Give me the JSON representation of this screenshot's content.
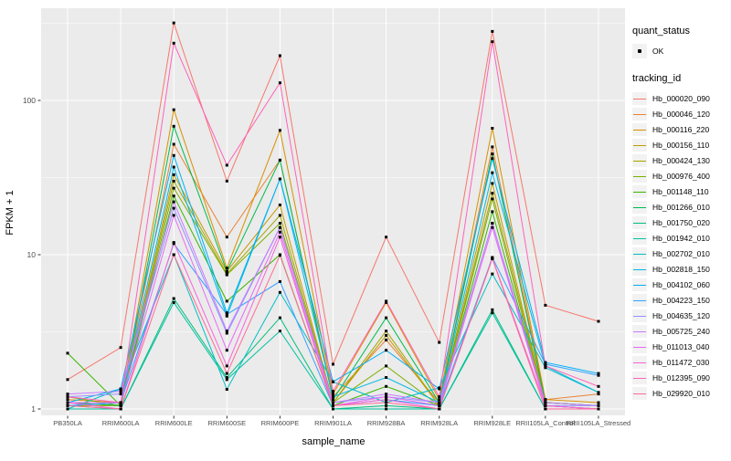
{
  "legend": {
    "quant_title": "quant_status",
    "quant_items": [
      {
        "label": "OK"
      }
    ],
    "tracking_title": "tracking_id"
  },
  "colors": {
    "panel_bg": "#EBEBEB",
    "grid": "#FFFFFF",
    "tick_mark": "#333333",
    "tick_label": "#4D4D4D",
    "point": "#000000",
    "legend_key_bg": "#F2F2F2"
  },
  "chart_data": {
    "type": "line",
    "title": "",
    "xlabel": "sample_name",
    "ylabel": "FPKM + 1",
    "y_scale": "log10",
    "ylim": [
      1,
      400
    ],
    "y_ticks": [
      1,
      10,
      100
    ],
    "y_minor_ticks": [
      3.162,
      31.62,
      316.2
    ],
    "grid": "on",
    "legend_position": "right",
    "point_marker": "black-square",
    "quant_status": "OK",
    "categories": [
      "PB350LA",
      "RRIM600LA",
      "RRIM600LE",
      "RRIM600SE",
      "RRIM600PE",
      "RRIM901LA",
      "RRIM928BA",
      "RRIM928LA",
      "RRIM928LE",
      "RRII105LA_Control",
      "RRII105LA_Stressed"
    ],
    "series": [
      {
        "name": "Hb_000020_090",
        "color": "#F8766D",
        "values": [
          1.55,
          2.5,
          318,
          30,
          195,
          1.95,
          13,
          2.7,
          280,
          4.7,
          3.7
        ]
      },
      {
        "name": "Hb_000046_120",
        "color": "#EA8331",
        "values": [
          1.1,
          1.05,
          52,
          13,
          41,
          1.2,
          2.8,
          1.1,
          50,
          1.15,
          1.25
        ]
      },
      {
        "name": "Hb_000116_220",
        "color": "#D89000",
        "values": [
          1.15,
          1.1,
          87,
          8.2,
          64,
          1.25,
          4.9,
          1.15,
          66,
          1.15,
          1.1
        ]
      },
      {
        "name": "Hb_000156_110",
        "color": "#C09B00",
        "values": [
          1.1,
          1.05,
          33,
          7.8,
          21,
          1.1,
          3.0,
          1.05,
          29,
          1.1,
          1.05
        ]
      },
      {
        "name": "Hb_000424_130",
        "color": "#A3A500",
        "values": [
          1.05,
          1.05,
          30,
          7.5,
          18,
          1.1,
          3.2,
          1.05,
          25,
          1.1,
          1.05
        ]
      },
      {
        "name": "Hb_000976_400",
        "color": "#7CAE00",
        "values": [
          1.2,
          1.05,
          27,
          7.4,
          16,
          1.1,
          1.9,
          1.05,
          23,
          1.05,
          1.0
        ]
      },
      {
        "name": "Hb_001148_110",
        "color": "#39B600",
        "values": [
          2.3,
          1.05,
          24,
          5.0,
          10,
          1.05,
          1.4,
          1.05,
          19,
          1.05,
          1.0
        ]
      },
      {
        "name": "Hb_001266_010",
        "color": "#00BB4E",
        "values": [
          1.1,
          1.05,
          68,
          7.8,
          41,
          1.15,
          3.9,
          1.1,
          45,
          1.1,
          1.05
        ]
      },
      {
        "name": "Hb_001750_020",
        "color": "#00BF7D",
        "values": [
          1.05,
          1.0,
          5.2,
          1.6,
          3.9,
          1.0,
          1.05,
          1.0,
          4.4,
          1.0,
          1.0
        ]
      },
      {
        "name": "Hb_001942_010",
        "color": "#00C1A3",
        "values": [
          1.0,
          1.0,
          4.9,
          1.55,
          3.2,
          1.0,
          1.0,
          1.0,
          4.2,
          1.0,
          1.0
        ]
      },
      {
        "name": "Hb_002702_010",
        "color": "#00BFC4",
        "values": [
          1.0,
          1.35,
          10,
          1.34,
          5.7,
          1.5,
          1.1,
          1.37,
          7.5,
          1.85,
          1.28
        ]
      },
      {
        "name": "Hb_002818_150",
        "color": "#00BAE0",
        "values": [
          1.05,
          1.1,
          37,
          4.0,
          31,
          1.2,
          1.6,
          1.1,
          34,
          1.9,
          1.28
        ]
      },
      {
        "name": "Hb_004102_060",
        "color": "#00B0F6",
        "values": [
          1.1,
          1.35,
          44,
          4.2,
          31,
          1.5,
          2.4,
          1.35,
          42,
          2.0,
          1.7
        ]
      },
      {
        "name": "Hb_004223_150",
        "color": "#35A2FF",
        "values": [
          1.05,
          1.1,
          11.8,
          4.1,
          6.7,
          1.05,
          1.15,
          1.05,
          9.6,
          1.95,
          1.65
        ]
      },
      {
        "name": "Hb_004635_120",
        "color": "#9590FF",
        "values": [
          1.2,
          1.25,
          20,
          3.1,
          15,
          1.1,
          1.2,
          1.1,
          16,
          1.05,
          1.05
        ]
      },
      {
        "name": "Hb_005725_240",
        "color": "#C77CFF",
        "values": [
          1.25,
          1.3,
          22,
          3.2,
          15,
          1.1,
          1.25,
          1.1,
          16,
          1.1,
          1.05
        ]
      },
      {
        "name": "Hb_011013_040",
        "color": "#E76BF3",
        "values": [
          1.1,
          1.1,
          18,
          2.4,
          14,
          1.05,
          1.2,
          1.05,
          15,
          1.05,
          1.0
        ]
      },
      {
        "name": "Hb_011472_030",
        "color": "#FA62DB",
        "values": [
          1.1,
          1.0,
          12,
          1.9,
          13,
          1.05,
          1.15,
          1.0,
          9.5,
          1.05,
          1.0
        ]
      },
      {
        "name": "Hb_012395_090",
        "color": "#FF62BC",
        "values": [
          1.2,
          1.1,
          235,
          38,
          130,
          1.3,
          5.0,
          1.2,
          240,
          1.9,
          1.4
        ]
      },
      {
        "name": "Hb_029920_010",
        "color": "#FF6A98",
        "values": [
          1.05,
          1.0,
          10,
          1.7,
          9.9,
          1.05,
          1.1,
          1.0,
          9.4,
          1.0,
          1.0
        ]
      }
    ]
  }
}
